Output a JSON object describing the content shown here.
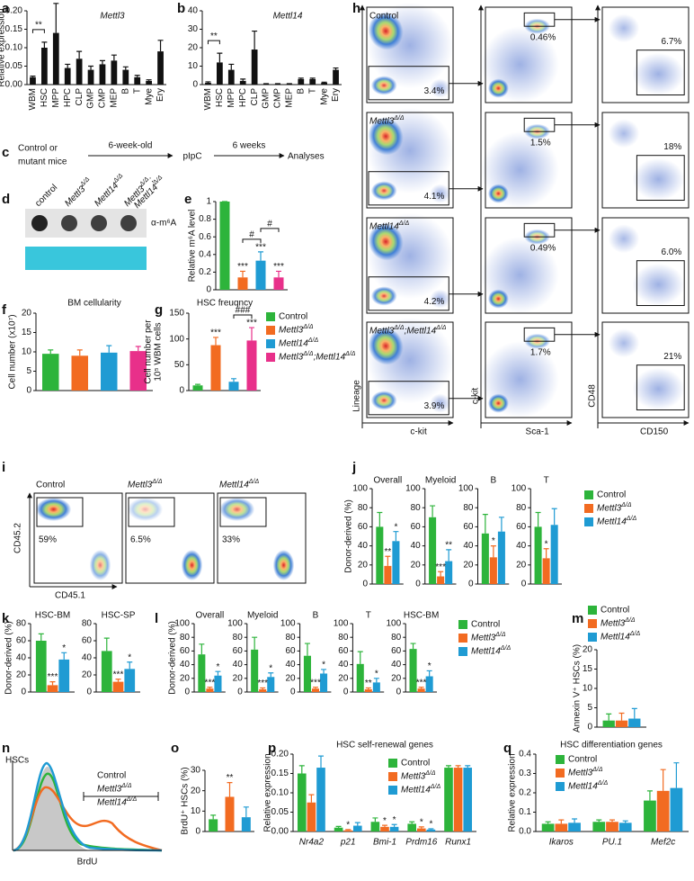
{
  "panel_labels": [
    "a",
    "b",
    "c",
    "d",
    "e",
    "f",
    "g",
    "h",
    "i",
    "j",
    "k",
    "l",
    "m",
    "n",
    "o",
    "p",
    "q"
  ],
  "diagram_c": {
    "start": [
      "Control or",
      "mutant mice"
    ],
    "step1": "6-week-old",
    "treatment": "pIpC",
    "step2": "6 weeks",
    "end": "Analyses"
  },
  "blot_d": {
    "lanes": [
      [
        "control"
      ],
      [
        "Mettl3Δ/Δ"
      ],
      [
        "Mettl14Δ/Δ"
      ],
      [
        "Mettl3Δ/Δ;",
        "Mettl14Δ/Δ"
      ]
    ],
    "antibody": "α-m⁶A"
  },
  "flow_h": {
    "rows": [
      {
        "label": "Control",
        "gates": [
          "3.4%",
          "0.46%",
          "6.7%"
        ]
      },
      {
        "label": "Mettl3Δ/Δ",
        "gates": [
          "4.1%",
          "1.5%",
          "18%"
        ]
      },
      {
        "label": "Mettl14Δ/Δ",
        "gates": [
          "4.2%",
          "0.49%",
          "6.0%"
        ]
      },
      {
        "label": "Mettl3Δ/Δ;Mettl14Δ/Δ",
        "gates": [
          "3.9%",
          "1.7%",
          "21%"
        ]
      }
    ],
    "axes": [
      {
        "x": "c-kit",
        "y": "Lineage"
      },
      {
        "x": "Sca-1",
        "y": "c-kit"
      },
      {
        "x": "CD150",
        "y": "CD48"
      }
    ]
  },
  "flow_i": {
    "xlabel": "CD45.1",
    "ylabel": "CD45.2",
    "plots": [
      {
        "label": "Control",
        "gate": "59%"
      },
      {
        "label": "Mettl3Δ/Δ",
        "gate": "6.5%"
      },
      {
        "label": "Mettl14Δ/Δ",
        "gate": "33%"
      }
    ]
  },
  "histogram_n": {
    "title": "HSCs",
    "xlabel": "BrdU",
    "series": [
      {
        "name": "Control",
        "color": "#2db43b"
      },
      {
        "name": "Mettl3Δ/Δ",
        "color": "#f26b21"
      },
      {
        "name": "Mettl14Δ/Δ",
        "color": "#1f9bd3"
      }
    ]
  },
  "chart_data": [
    {
      "type": "bar",
      "title": "Mettl3",
      "ylabel": "Relative expression",
      "categories": [
        "WBM",
        "HSC",
        "MPP",
        "HPC",
        "CLP",
        "GMP",
        "CMP",
        "MEP",
        "B",
        "T",
        "Mye",
        "Ery"
      ],
      "values": [
        0.02,
        0.1,
        0.14,
        0.045,
        0.07,
        0.04,
        0.055,
        0.065,
        0.04,
        0.02,
        0.01,
        0.09
      ],
      "errors": [
        0.003,
        0.015,
        0.08,
        0.01,
        0.02,
        0.01,
        0.01,
        0.015,
        0.008,
        0.005,
        0.003,
        0.03
      ],
      "color": "#111111",
      "ylim": [
        0,
        0.2
      ],
      "yticks": [
        {
          "value": 0,
          "label": "0.00"
        },
        {
          "value": 0.05,
          "label": "0.05"
        },
        {
          "value": 0.1,
          "label": "0.10"
        },
        {
          "value": 0.15,
          "label": "0.15"
        },
        {
          "value": 0.2,
          "label": "0.20"
        }
      ],
      "annotations": [
        {
          "text": "**",
          "span": [
            0,
            1
          ]
        }
      ]
    },
    {
      "type": "bar",
      "title": "Mettl14",
      "categories": [
        "WBM",
        "HSC",
        "MPP",
        "HPC",
        "CLP",
        "GMP",
        "CMP",
        "MEP",
        "B",
        "T",
        "Mye",
        "Ery"
      ],
      "values": [
        1,
        12,
        8,
        2,
        19,
        0.3,
        0.3,
        0.3,
        3,
        3,
        1,
        8
      ],
      "errors": [
        0.5,
        5,
        3,
        1,
        10,
        0.2,
        0.2,
        0.2,
        0.5,
        0.5,
        0.3,
        1
      ],
      "color": "#111111",
      "ylim": [
        0,
        40
      ],
      "yticks": [
        0,
        10,
        20,
        30,
        40
      ],
      "annotations": [
        {
          "text": "**",
          "span": [
            0,
            1
          ]
        }
      ]
    },
    {
      "type": "bar",
      "ylabel": "Relative m⁶A level",
      "values": [
        1,
        0.14,
        0.33,
        0.14
      ],
      "errors": [
        0,
        0.07,
        0.1,
        0.07
      ],
      "colors": [
        "#2db43b",
        "#f26b21",
        "#1f9bd3",
        "#e8308a"
      ],
      "ylim": [
        0,
        1
      ],
      "yticks": [
        0,
        0.2,
        0.4,
        0.6,
        0.8,
        1
      ],
      "annotations": [
        {
          "text": "***",
          "category": 1
        },
        {
          "text": "***",
          "category": 2
        },
        {
          "text": "***",
          "category": 3
        },
        {
          "text": "#",
          "span": [
            1,
            2
          ]
        },
        {
          "text": "#",
          "span": [
            2,
            3
          ]
        }
      ]
    },
    {
      "type": "bar",
      "title": "BM cellularity",
      "ylabel": "Cell number (x10⁷)",
      "values": [
        9.5,
        9,
        9.8,
        10.2
      ],
      "errors": [
        1,
        1.5,
        1.8,
        1.2
      ],
      "colors": [
        "#2db43b",
        "#f26b21",
        "#1f9bd3",
        "#e8308a"
      ],
      "ylim": [
        0,
        20
      ],
      "yticks": [
        0,
        5,
        10,
        15,
        20
      ]
    },
    {
      "type": "bar",
      "title": "HSC freuqncy",
      "ylabel": [
        "Cell number  per",
        "10⁵ WBM cells"
      ],
      "values": [
        10,
        88,
        17,
        97
      ],
      "errors": [
        2,
        15,
        6,
        25
      ],
      "colors": [
        "#2db43b",
        "#f26b21",
        "#1f9bd3",
        "#e8308a"
      ],
      "ylim": [
        0,
        150
      ],
      "yticks": [
        0,
        50,
        100,
        150
      ],
      "annotations": [
        {
          "text": "***",
          "category": 1
        },
        {
          "text": "***",
          "category": 3
        },
        {
          "text": "###",
          "span": [
            2,
            3
          ]
        }
      ],
      "legend": [
        {
          "name": "Control",
          "color": "#2db43b"
        },
        {
          "name": "Mettl3Δ/Δ",
          "color": "#f26b21"
        },
        {
          "name": "Mettl14Δ/Δ",
          "color": "#1f9bd3"
        },
        {
          "name": "Mettl3Δ/Δ;Mettl14Δ/Δ",
          "color": "#e8308a"
        }
      ]
    },
    {
      "type": "bar",
      "ylabel": "Donor-derived (%)",
      "separate_axes": true,
      "categories": [
        "Overall",
        "Myeloid",
        "B",
        "T"
      ],
      "series": [
        {
          "name": "Control",
          "color": "#2db43b",
          "values": [
            60,
            70,
            53,
            60
          ],
          "errors": [
            15,
            12,
            20,
            15
          ]
        },
        {
          "name": "Mettl3Δ/Δ",
          "color": "#f26b21",
          "values": [
            19,
            8,
            28,
            27
          ],
          "errors": [
            10,
            5,
            12,
            10
          ]
        },
        {
          "name": "Mettl14Δ/Δ",
          "color": "#1f9bd3",
          "values": [
            45,
            24,
            55,
            62
          ],
          "errors": [
            10,
            12,
            15,
            17
          ]
        }
      ],
      "ylim": [
        0,
        100
      ],
      "yticks": [
        0,
        20,
        40,
        60,
        80,
        100
      ],
      "annotations": [
        {
          "text": "**",
          "series": 1,
          "category": 0
        },
        {
          "text": "*",
          "series": 2,
          "category": 0
        },
        {
          "text": "***",
          "series": 1,
          "category": 1
        },
        {
          "text": "**",
          "series": 2,
          "category": 1
        },
        {
          "text": "*",
          "series": 1,
          "category": 2
        },
        {
          "text": "*",
          "series": 1,
          "category": 3
        }
      ]
    },
    {
      "type": "bar",
      "ylabel": "Donor-derived (%)",
      "separate_axes": true,
      "categories": [
        "HSC-BM",
        "HSC-SP"
      ],
      "series": [
        {
          "color": "#2db43b",
          "values": [
            60,
            48
          ],
          "errors": [
            8,
            15
          ]
        },
        {
          "color": "#f26b21",
          "values": [
            8,
            12
          ],
          "errors": [
            4,
            3
          ]
        },
        {
          "color": "#1f9bd3",
          "values": [
            38,
            27
          ],
          "errors": [
            8,
            8
          ]
        }
      ],
      "ylim": [
        0,
        80
      ],
      "yticks": [
        0,
        20,
        40,
        60,
        80
      ],
      "annotations": [
        {
          "text": "***",
          "series": 1,
          "category": 0
        },
        {
          "text": "*",
          "series": 2,
          "category": 0
        },
        {
          "text": "***",
          "series": 1,
          "category": 1
        },
        {
          "text": "*",
          "series": 2,
          "category": 1
        }
      ]
    },
    {
      "type": "bar",
      "ylabel": "Donor-derived (%)",
      "separate_axes": true,
      "categories": [
        "Overall",
        "Myeloid",
        "B",
        "T",
        "HSC-BM"
      ],
      "series": [
        {
          "name": "Control",
          "color": "#2db43b",
          "values": [
            55,
            62,
            53,
            41,
            63
          ],
          "errors": [
            15,
            18,
            18,
            18,
            8
          ]
        },
        {
          "name": "Mettl3Δ/Δ",
          "color": "#f26b21",
          "values": [
            5,
            4,
            5,
            4,
            5
          ],
          "errors": [
            2,
            2,
            2,
            2,
            2
          ]
        },
        {
          "name": "Mettl14Δ/Δ",
          "color": "#1f9bd3",
          "values": [
            24,
            22,
            27,
            14,
            23
          ],
          "errors": [
            6,
            6,
            6,
            6,
            8
          ]
        }
      ],
      "ylim": [
        0,
        100
      ],
      "yticks": [
        0,
        20,
        40,
        60,
        80,
        100
      ],
      "annotations": [
        {
          "text": "***",
          "series": 1,
          "category": 0
        },
        {
          "text": "*",
          "series": 2,
          "category": 0
        },
        {
          "text": "***",
          "series": 1,
          "category": 1
        },
        {
          "text": "*",
          "series": 2,
          "category": 1
        },
        {
          "text": "***",
          "series": 1,
          "category": 2
        },
        {
          "text": "*",
          "series": 2,
          "category": 2
        },
        {
          "text": "**",
          "series": 1,
          "category": 3
        },
        {
          "text": "*",
          "series": 2,
          "category": 3
        },
        {
          "text": "***",
          "series": 1,
          "category": 4
        },
        {
          "text": "*",
          "series": 2,
          "category": 4
        }
      ]
    },
    {
      "type": "bar",
      "ylabel": "Annexin V⁺ HSCs (%)",
      "series": [
        {
          "name": "Control",
          "color": "#2db43b",
          "values": [
            1.7
          ],
          "errors": [
            1.7
          ]
        },
        {
          "name": "Mettl3Δ/Δ",
          "color": "#f26b21",
          "values": [
            1.7
          ],
          "errors": [
            1.9
          ]
        },
        {
          "name": "Mettl14Δ/Δ",
          "color": "#1f9bd3",
          "values": [
            2.2
          ],
          "errors": [
            2.6
          ]
        }
      ],
      "ylim": [
        0,
        20
      ],
      "yticks": [
        0,
        5,
        10,
        15,
        20
      ]
    },
    {
      "type": "bar",
      "ylabel": "BrdU⁺ HSCs (%)",
      "values": [
        6,
        17,
        7
      ],
      "errors": [
        2,
        7,
        5
      ],
      "colors": [
        "#2db43b",
        "#f26b21",
        "#1f9bd3"
      ],
      "ylim": [
        0,
        30
      ],
      "yticks": [
        0,
        10,
        20,
        30
      ],
      "annotations": [
        {
          "text": "**",
          "category": 1
        }
      ]
    },
    {
      "type": "bar",
      "title": "HSC self-renewal genes",
      "ylabel": "Relative expression",
      "categories": [
        "Nr4a2",
        "p21",
        "Bmi-1",
        "Prdm16",
        "Runx1"
      ],
      "series": [
        {
          "name": "Control",
          "color": "#2db43b",
          "values": [
            0.15,
            0.01,
            0.025,
            0.02,
            0.165
          ],
          "errors": [
            0.02,
            0.003,
            0.01,
            0.005,
            0.005
          ]
        },
        {
          "name": "Mettl3Δ/Δ",
          "color": "#f26b21",
          "values": [
            0.075,
            0.003,
            0.012,
            0.008,
            0.165
          ],
          "errors": [
            0.02,
            0.002,
            0.004,
            0.004,
            0.005
          ]
        },
        {
          "name": "Mettl14Δ/Δ",
          "color": "#1f9bd3",
          "values": [
            0.165,
            0.015,
            0.012,
            0.005,
            0.165
          ],
          "errors": [
            0.03,
            0.008,
            0.006,
            0.002,
            0.005
          ]
        }
      ],
      "ylim": [
        0,
        0.2
      ],
      "yticks": [
        {
          "value": 0,
          "label": "0.00"
        },
        {
          "value": 0.05,
          "label": "0.05"
        },
        {
          "value": 0.1,
          "label": "0.10"
        },
        {
          "value": 0.15,
          "label": "0.15"
        },
        {
          "value": 0.2,
          "label": "0.20"
        }
      ],
      "annotations": [
        {
          "text": "*",
          "series": 1,
          "category": 1
        },
        {
          "text": "*",
          "series": 1,
          "category": 2
        },
        {
          "text": "*",
          "series": 2,
          "category": 2
        },
        {
          "text": "*",
          "series": 1,
          "category": 3
        },
        {
          "text": "*",
          "series": 2,
          "category": 3
        }
      ]
    },
    {
      "type": "bar",
      "title": "HSC differentiation genes",
      "ylabel": "Relative expression",
      "categories": [
        "Ikaros",
        "PU.1",
        "Mef2c"
      ],
      "series": [
        {
          "name": "Control",
          "color": "#2db43b",
          "values": [
            0.04,
            0.05,
            0.16
          ],
          "errors": [
            0.01,
            0.01,
            0.05
          ]
        },
        {
          "name": "Mettl3Δ/Δ",
          "color": "#f26b21",
          "values": [
            0.04,
            0.05,
            0.21
          ],
          "errors": [
            0.02,
            0.01,
            0.11
          ]
        },
        {
          "name": "Mettl14Δ/Δ",
          "color": "#1f9bd3",
          "values": [
            0.045,
            0.045,
            0.225
          ],
          "errors": [
            0.02,
            0.01,
            0.13
          ]
        }
      ],
      "ylim": [
        0,
        0.4
      ],
      "yticks": [
        {
          "value": 0,
          "label": "0.0"
        },
        0.1,
        0.2,
        0.3,
        0.4
      ]
    }
  ]
}
